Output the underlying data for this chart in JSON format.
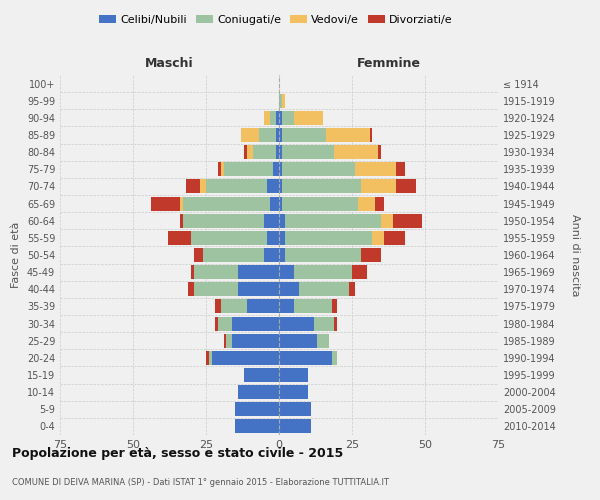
{
  "age_groups": [
    "0-4",
    "5-9",
    "10-14",
    "15-19",
    "20-24",
    "25-29",
    "30-34",
    "35-39",
    "40-44",
    "45-49",
    "50-54",
    "55-59",
    "60-64",
    "65-69",
    "70-74",
    "75-79",
    "80-84",
    "85-89",
    "90-94",
    "95-99",
    "100+"
  ],
  "birth_years": [
    "2010-2014",
    "2005-2009",
    "2000-2004",
    "1995-1999",
    "1990-1994",
    "1985-1989",
    "1980-1984",
    "1975-1979",
    "1970-1974",
    "1965-1969",
    "1960-1964",
    "1955-1959",
    "1950-1954",
    "1945-1949",
    "1940-1944",
    "1935-1939",
    "1930-1934",
    "1925-1929",
    "1920-1924",
    "1915-1919",
    "≤ 1914"
  ],
  "males": {
    "celibe": [
      15,
      15,
      14,
      12,
      23,
      16,
      16,
      11,
      14,
      14,
      5,
      4,
      5,
      3,
      4,
      2,
      1,
      1,
      1,
      0,
      0
    ],
    "coniugato": [
      0,
      0,
      0,
      0,
      1,
      2,
      5,
      9,
      15,
      15,
      21,
      26,
      28,
      30,
      21,
      17,
      8,
      6,
      2,
      0,
      0
    ],
    "vedovo": [
      0,
      0,
      0,
      0,
      0,
      0,
      0,
      0,
      0,
      0,
      0,
      0,
      0,
      1,
      2,
      1,
      2,
      6,
      2,
      0,
      0
    ],
    "divorziato": [
      0,
      0,
      0,
      0,
      1,
      1,
      1,
      2,
      2,
      1,
      3,
      8,
      1,
      10,
      5,
      1,
      1,
      0,
      0,
      0,
      0
    ]
  },
  "females": {
    "nubile": [
      11,
      11,
      10,
      10,
      18,
      13,
      12,
      5,
      7,
      5,
      2,
      2,
      2,
      1,
      1,
      1,
      1,
      1,
      1,
      0,
      0
    ],
    "coniugata": [
      0,
      0,
      0,
      0,
      2,
      4,
      7,
      13,
      17,
      20,
      26,
      30,
      33,
      26,
      27,
      25,
      18,
      15,
      4,
      1,
      0
    ],
    "vedova": [
      0,
      0,
      0,
      0,
      0,
      0,
      0,
      0,
      0,
      0,
      0,
      4,
      4,
      6,
      12,
      14,
      15,
      15,
      10,
      1,
      0
    ],
    "divorziata": [
      0,
      0,
      0,
      0,
      0,
      0,
      1,
      2,
      2,
      5,
      7,
      7,
      10,
      3,
      7,
      3,
      1,
      1,
      0,
      0,
      0
    ]
  },
  "colors": {
    "celibe": "#4472C4",
    "coniugato": "#9DC3A0",
    "vedovo": "#F2C060",
    "divorziato": "#C0392B"
  },
  "xlim": 75,
  "title": "Popolazione per età, sesso e stato civile - 2015",
  "subtitle": "COMUNE DI DEIVA MARINA (SP) - Dati ISTAT 1° gennaio 2015 - Elaborazione TUTTITALIA.IT",
  "ylabel": "Fasce di età",
  "ylabel_right": "Anni di nascita",
  "label_maschi": "Maschi",
  "label_femmine": "Femmine",
  "legend_labels": [
    "Celibi/Nubili",
    "Coniugati/e",
    "Vedovi/e",
    "Divorziati/e"
  ],
  "bg_color": "#f0f0f0"
}
